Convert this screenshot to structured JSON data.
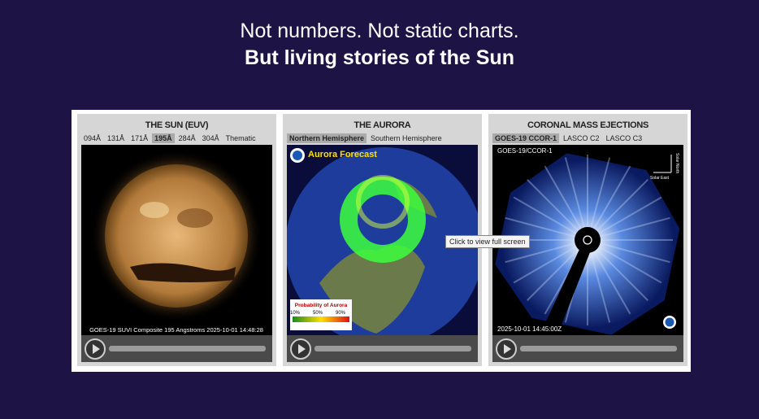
{
  "header": {
    "line1": "Not numbers. Not static charts.",
    "line2": "But living stories of the Sun"
  },
  "panels": [
    {
      "kind": "sun",
      "title": "THE SUN (EUV)",
      "tabs": [
        "094Å",
        "131Å",
        "171Å",
        "195Å",
        "284Å",
        "304Å",
        "Thematic"
      ],
      "active_tab": 3,
      "caption": "GOES-19 SUVI Composite 195 Angstroms 2025-10-01 14:48:28"
    },
    {
      "kind": "aurora",
      "title": "THE AURORA",
      "tabs": [
        "Northern Hemisphere",
        "Southern Hemisphere"
      ],
      "active_tab": 0,
      "overlay_title": "Aurora Forecast",
      "legend_title": "Probability of Aurora",
      "legend_ticks": [
        "10%",
        "50%",
        "90%"
      ]
    },
    {
      "kind": "cme",
      "title": "CORONAL MASS EJECTIONS",
      "tabs": [
        "GOES-19 CCOR-1",
        "LASCO C2",
        "LASCO C3"
      ],
      "active_tab": 0,
      "image_label": "GOES-19/CCOR-1",
      "compass": [
        "Solar North",
        "Solar East"
      ],
      "caption": "2025-10-01 14:45:00Z"
    }
  ],
  "tooltip": "Click to view full screen"
}
